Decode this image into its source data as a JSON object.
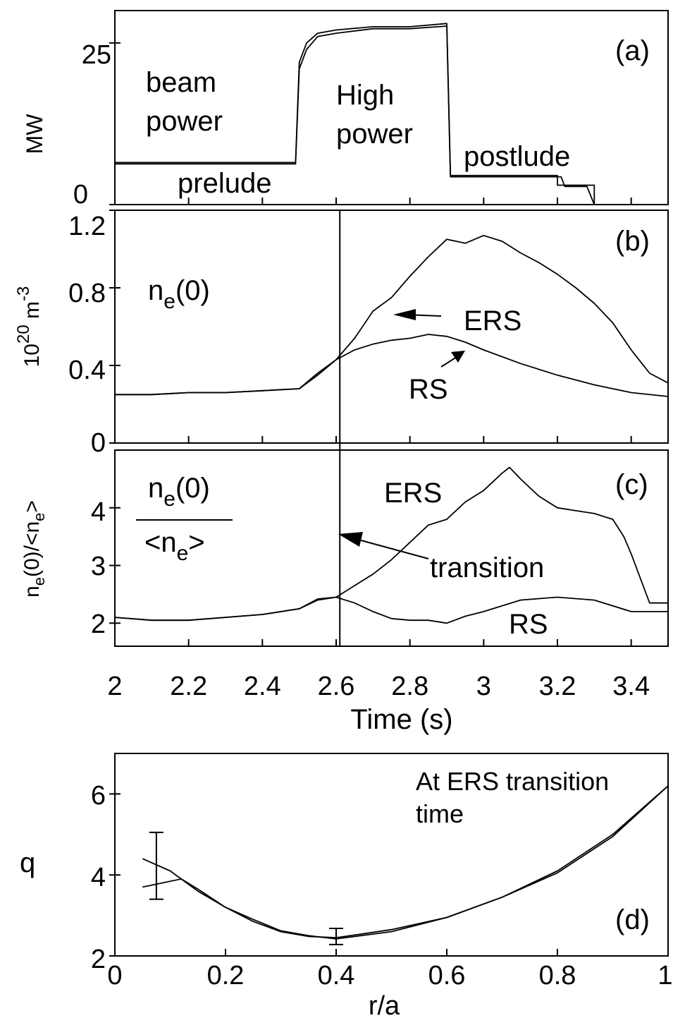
{
  "chart_data": [
    {
      "type": "line",
      "panel_label": "(a)",
      "ylabel": "MW",
      "ylim": [
        0,
        30
      ],
      "yticks": [
        "0",
        "25"
      ],
      "xlim": [
        2.0,
        3.5
      ],
      "annotations": [
        "beam",
        "power",
        "High",
        "power",
        "prelude",
        "postlude"
      ],
      "series": [
        {
          "x": [
            2.0,
            2.49,
            2.5,
            2.52,
            2.55,
            2.6,
            2.7,
            2.8,
            2.9,
            2.9,
            2.91,
            3.0,
            3.1,
            3.2,
            3.2,
            3.3,
            3.3
          ],
          "y": [
            6.5,
            6.5,
            22,
            25,
            26.5,
            27,
            27.5,
            27.5,
            28,
            28,
            4.5,
            4.5,
            4.5,
            4.5,
            3,
            3,
            0
          ]
        },
        {
          "x": [
            2.0,
            2.49,
            2.5,
            2.52,
            2.55,
            2.6,
            2.7,
            2.8,
            2.9,
            2.9,
            2.91,
            3.0,
            3.1,
            3.21,
            3.22,
            3.28,
            3.3
          ],
          "y": [
            6.3,
            6.3,
            21,
            24,
            26,
            26.5,
            27.2,
            27.2,
            27.6,
            27.6,
            4.3,
            4.3,
            4.3,
            4.3,
            2.8,
            2.8,
            0
          ]
        }
      ]
    },
    {
      "type": "line",
      "panel_label": "(b)",
      "ylabel": "10^20 m^-3",
      "ylim": [
        0,
        1.2
      ],
      "yticks": [
        "0",
        "0.4",
        "0.8",
        "1.2"
      ],
      "xlim": [
        2.0,
        3.5
      ],
      "annotations": [
        "n_e(0)"
      ],
      "series": [
        {
          "name": "ERS",
          "x": [
            2.0,
            2.1,
            2.2,
            2.3,
            2.4,
            2.5,
            2.55,
            2.6,
            2.65,
            2.7,
            2.75,
            2.8,
            2.85,
            2.9,
            2.95,
            3.0,
            3.05,
            3.1,
            3.15,
            3.2,
            3.25,
            3.3,
            3.35,
            3.4,
            3.45,
            3.5
          ],
          "y": [
            0.25,
            0.25,
            0.26,
            0.26,
            0.27,
            0.28,
            0.35,
            0.43,
            0.54,
            0.68,
            0.75,
            0.86,
            0.96,
            1.05,
            1.03,
            1.07,
            1.04,
            0.98,
            0.93,
            0.87,
            0.8,
            0.72,
            0.62,
            0.48,
            0.36,
            0.31
          ]
        },
        {
          "name": "RS",
          "x": [
            2.0,
            2.1,
            2.2,
            2.3,
            2.4,
            2.5,
            2.55,
            2.6,
            2.65,
            2.7,
            2.75,
            2.8,
            2.85,
            2.9,
            2.95,
            3.0,
            3.1,
            3.2,
            3.3,
            3.4,
            3.5
          ],
          "y": [
            0.25,
            0.25,
            0.26,
            0.26,
            0.27,
            0.28,
            0.36,
            0.43,
            0.48,
            0.51,
            0.53,
            0.54,
            0.56,
            0.55,
            0.52,
            0.48,
            0.41,
            0.35,
            0.3,
            0.26,
            0.24
          ]
        }
      ],
      "labels": [
        "ERS",
        "RS"
      ]
    },
    {
      "type": "line",
      "panel_label": "(c)",
      "ylabel": "n_e(0)/<n_e>",
      "ylim": [
        1.6,
        5.0
      ],
      "yticks": [
        "2",
        "3",
        "4"
      ],
      "xlim": [
        2.0,
        3.5
      ],
      "xticks": [
        "2",
        "2.2",
        "2.4",
        "2.6",
        "2.8",
        "3",
        "3.2",
        "3.4"
      ],
      "xlabel": "Time (s)",
      "annotations": [
        "n_e(0)",
        "<n_e>",
        "transition"
      ],
      "series": [
        {
          "name": "ERS",
          "x": [
            2.0,
            2.1,
            2.2,
            2.3,
            2.4,
            2.5,
            2.55,
            2.6,
            2.65,
            2.7,
            2.75,
            2.8,
            2.85,
            2.9,
            2.95,
            3.0,
            3.05,
            3.07,
            3.1,
            3.15,
            3.2,
            3.25,
            3.3,
            3.35,
            3.38,
            3.4,
            3.45,
            3.5
          ],
          "y": [
            2.1,
            2.05,
            2.05,
            2.1,
            2.15,
            2.25,
            2.4,
            2.45,
            2.65,
            2.85,
            3.1,
            3.4,
            3.7,
            3.8,
            4.1,
            4.3,
            4.6,
            4.7,
            4.5,
            4.2,
            4.0,
            3.95,
            3.9,
            3.8,
            3.5,
            3.2,
            2.35,
            2.35
          ]
        },
        {
          "name": "RS",
          "x": [
            2.0,
            2.1,
            2.2,
            2.3,
            2.4,
            2.5,
            2.55,
            2.6,
            2.65,
            2.7,
            2.75,
            2.8,
            2.85,
            2.9,
            2.95,
            3.0,
            3.1,
            3.2,
            3.3,
            3.4,
            3.5
          ],
          "y": [
            2.1,
            2.05,
            2.05,
            2.1,
            2.15,
            2.25,
            2.42,
            2.45,
            2.35,
            2.2,
            2.08,
            2.05,
            2.05,
            2.0,
            2.12,
            2.2,
            2.4,
            2.45,
            2.4,
            2.2,
            2.2
          ]
        }
      ],
      "labels": [
        "ERS",
        "RS"
      ],
      "transition_time": 2.61
    },
    {
      "type": "line",
      "panel_label": "(d)",
      "ylabel": "q",
      "xlabel": "r/a",
      "ylim": [
        2,
        7
      ],
      "yticks": [
        "2",
        "4",
        "6"
      ],
      "xlim": [
        0,
        1
      ],
      "xticks": [
        "0",
        "0.2",
        "0.4",
        "0.6",
        "0.8",
        "1"
      ],
      "annotations": [
        "At ERS transition",
        "time"
      ],
      "series": [
        {
          "x": [
            0.05,
            0.1,
            0.15,
            0.2,
            0.25,
            0.3,
            0.35,
            0.4,
            0.5,
            0.6,
            0.7,
            0.8,
            0.9,
            1.0
          ],
          "y": [
            4.4,
            4.1,
            3.6,
            3.2,
            2.85,
            2.6,
            2.48,
            2.45,
            2.65,
            2.95,
            3.45,
            4.1,
            5.0,
            6.2
          ]
        },
        {
          "x": [
            0.05,
            0.12,
            0.15,
            0.2,
            0.25,
            0.3,
            0.35,
            0.4,
            0.5,
            0.6,
            0.7,
            0.8,
            0.9,
            1.0
          ],
          "y": [
            3.7,
            3.9,
            3.65,
            3.2,
            2.9,
            2.62,
            2.5,
            2.42,
            2.6,
            2.95,
            3.45,
            4.05,
            4.95,
            6.2
          ]
        }
      ],
      "error_bars": [
        {
          "x": 0.075,
          "y": 4.25,
          "low": 3.4,
          "high": 5.05
        },
        {
          "x": 0.4,
          "y": 2.48,
          "low": 2.28,
          "high": 2.68
        }
      ]
    }
  ]
}
